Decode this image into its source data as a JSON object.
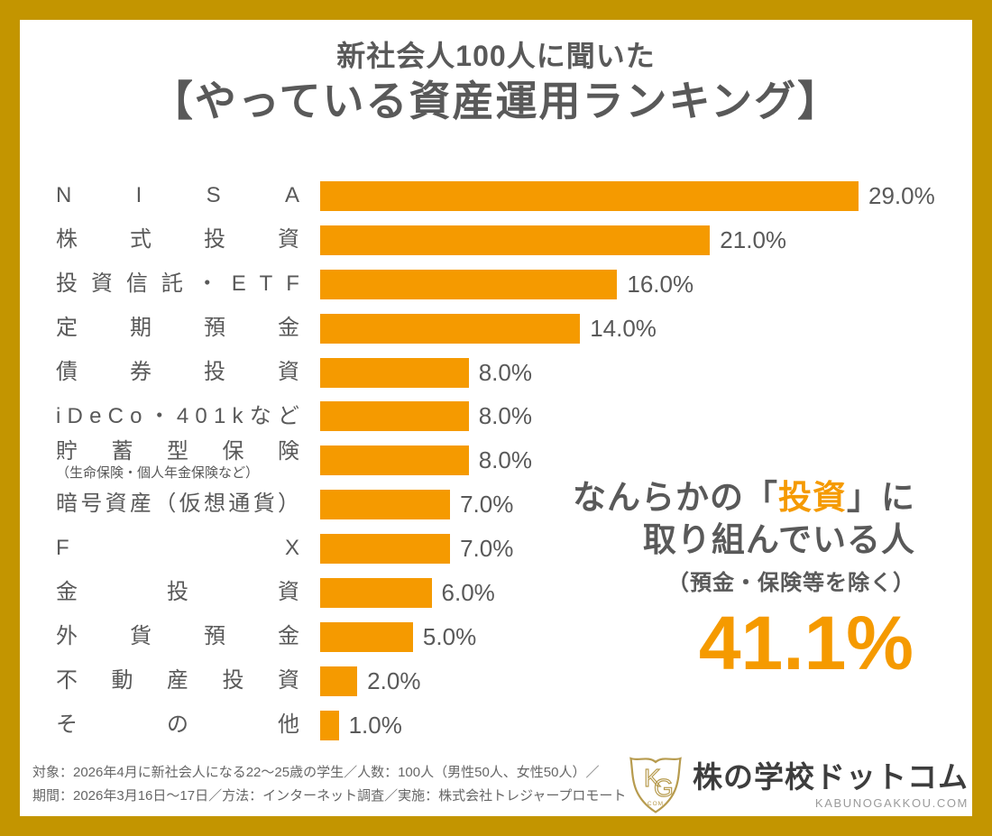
{
  "title": {
    "line1": "新社会人100人に聞いた",
    "line2": "【やっている資産運用ランキング】"
  },
  "colors": {
    "accent_orange": "#F59A00",
    "frame_gold": "#C39500",
    "text_gray": "#595959",
    "footer_gray": "#666666",
    "logo_gold": "#B79B4E",
    "logo_text": "#3d3d3d",
    "logo_domain_gray": "#9b9b9b"
  },
  "chart_data": {
    "type": "bar",
    "orientation": "horizontal",
    "unit": "%",
    "xlim": [
      0,
      29
    ],
    "grid": false,
    "legend": false,
    "bar_color": "#F59A00",
    "categories": [
      "NISA",
      "株式投資",
      "投資信託・ETF",
      "定期預金",
      "債券投資",
      "iDeCo・401kなど",
      "貯蓄型保険",
      "暗号資産（仮想通貨）",
      "FX",
      "金投資",
      "外貨預金",
      "不動産投資",
      "その他"
    ],
    "values": [
      29.0,
      21.0,
      16.0,
      14.0,
      8.0,
      8.0,
      8.0,
      7.0,
      7.0,
      6.0,
      5.0,
      2.0,
      1.0
    ],
    "rows": [
      {
        "label": "NISA",
        "value": 29.0,
        "display": "29.0%",
        "sub": ""
      },
      {
        "label": "株式投資",
        "value": 21.0,
        "display": "21.0%",
        "sub": ""
      },
      {
        "label": "投資信託・ETF",
        "value": 16.0,
        "display": "16.0%",
        "sub": ""
      },
      {
        "label": "定期預金",
        "value": 14.0,
        "display": "14.0%",
        "sub": ""
      },
      {
        "label": "債券投資",
        "value": 8.0,
        "display": "8.0%",
        "sub": ""
      },
      {
        "label": "iDeCo・401kなど",
        "value": 8.0,
        "display": "8.0%",
        "sub": ""
      },
      {
        "label": "貯蓄型保険",
        "value": 8.0,
        "display": "8.0%",
        "sub": "（生命保険・個人年金保険など）"
      },
      {
        "label": "暗号資産（仮想通貨）",
        "value": 7.0,
        "display": "7.0%",
        "sub": ""
      },
      {
        "label": "FX",
        "value": 7.0,
        "display": "7.0%",
        "sub": ""
      },
      {
        "label": "金投資",
        "value": 6.0,
        "display": "6.0%",
        "sub": ""
      },
      {
        "label": "外貨預金",
        "value": 5.0,
        "display": "5.0%",
        "sub": ""
      },
      {
        "label": "不動産投資",
        "value": 2.0,
        "display": "2.0%",
        "sub": ""
      },
      {
        "label": "その他",
        "value": 1.0,
        "display": "1.0%",
        "sub": ""
      }
    ]
  },
  "annotation": {
    "line1_pre": "なんらかの「",
    "line1_highlight": "投資",
    "line1_post": "」に",
    "line2": "取り組んでいる人",
    "line3": "（預金・保険等を除く）",
    "big_value": "41.1%"
  },
  "footer": {
    "note_line1": "対象：2026年4月に新社会人になる22〜25歳の学生／人数：100人（男性50人、女性50人）／",
    "note_line2": "期間：2026年3月16日〜17日／方法：インターネット調査／実施：株式会社トレジャープロモート"
  },
  "logo": {
    "shield_letters_k": "K",
    "shield_letters_g": "G",
    "shield_sub": "COM",
    "name": "株の学校ドットコム",
    "domain": "KABUNOGAKKOU.COM"
  }
}
